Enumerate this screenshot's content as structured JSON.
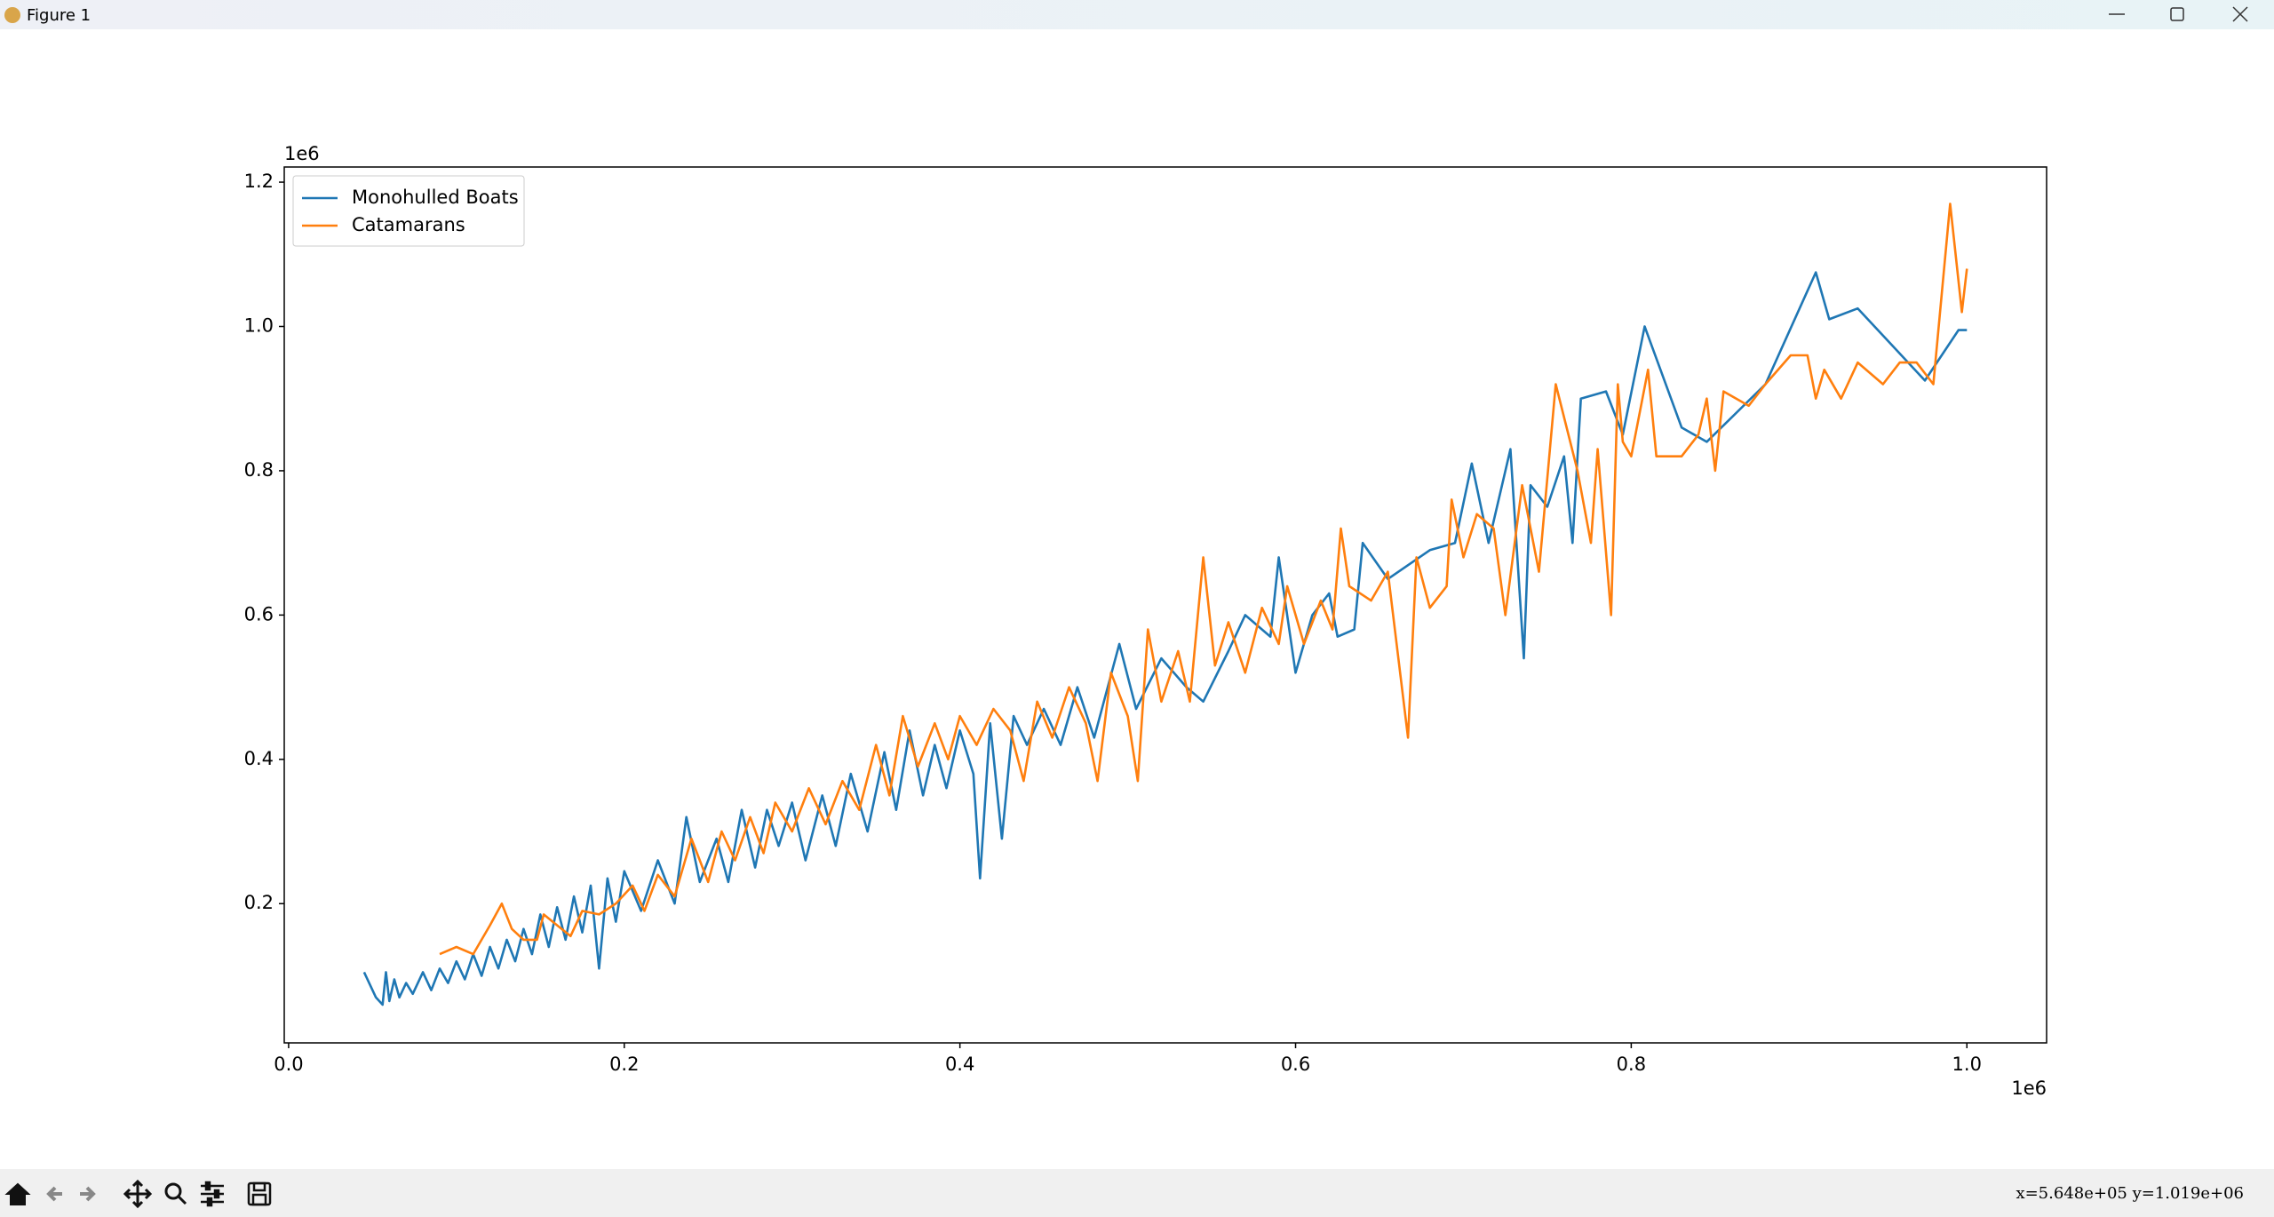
{
  "window_title": "Figure 1",
  "status_text": "x=5.648e+05 y=1.019e+06",
  "chart_data": {
    "type": "line",
    "x_offset_label": "1e6",
    "y_offset_label": "1e6",
    "xlim": [
      -2600,
      1047500
    ],
    "ylim": [
      7000,
      1221000
    ],
    "xticks": [
      {
        "value": 0,
        "label": "0.0"
      },
      {
        "value": 200000,
        "label": "0.2"
      },
      {
        "value": 400000,
        "label": "0.4"
      },
      {
        "value": 600000,
        "label": "0.6"
      },
      {
        "value": 800000,
        "label": "0.8"
      },
      {
        "value": 1000000,
        "label": "1.0"
      }
    ],
    "yticks": [
      {
        "value": 200000,
        "label": "0.2"
      },
      {
        "value": 400000,
        "label": "0.4"
      },
      {
        "value": 600000,
        "label": "0.6"
      },
      {
        "value": 800000,
        "label": "0.8"
      },
      {
        "value": 1000000,
        "label": "1.0"
      },
      {
        "value": 1200000,
        "label": "1.2"
      }
    ],
    "legend": "upper left",
    "grid": false,
    "series": [
      {
        "name": "Monohulled Boats",
        "color": "#1f77b4",
        "x": [
          45000,
          52000,
          56000,
          58000,
          60000,
          63000,
          66000,
          70000,
          74000,
          80000,
          85000,
          90000,
          95000,
          100000,
          105000,
          110000,
          115000,
          120000,
          125000,
          130000,
          135000,
          140000,
          145000,
          150000,
          155000,
          160000,
          165000,
          170000,
          175000,
          180000,
          185000,
          190000,
          195000,
          200000,
          210000,
          220000,
          230000,
          237000,
          245000,
          255000,
          262000,
          270000,
          278000,
          285000,
          292000,
          300000,
          308000,
          318000,
          326000,
          335000,
          345000,
          355000,
          362000,
          370000,
          378000,
          385000,
          392000,
          400000,
          408000,
          412000,
          418000,
          425000,
          432000,
          440000,
          450000,
          460000,
          470000,
          480000,
          495000,
          505000,
          520000,
          535000,
          545000,
          560000,
          570000,
          585000,
          590000,
          600000,
          610000,
          620000,
          625000,
          635000,
          640000,
          655000,
          680000,
          695000,
          705000,
          715000,
          728000,
          736000,
          740000,
          750000,
          760000,
          765000,
          770000,
          785000,
          795000,
          808000,
          830000,
          845000,
          880000,
          910000,
          918000,
          935000,
          975000,
          995000,
          1000000
        ],
        "values": [
          105000,
          70000,
          60000,
          105000,
          65000,
          95000,
          70000,
          90000,
          75000,
          105000,
          80000,
          110000,
          90000,
          120000,
          95000,
          130000,
          100000,
          140000,
          110000,
          150000,
          120000,
          165000,
          130000,
          185000,
          140000,
          195000,
          150000,
          210000,
          160000,
          225000,
          110000,
          235000,
          175000,
          245000,
          190000,
          260000,
          200000,
          320000,
          230000,
          290000,
          230000,
          330000,
          250000,
          330000,
          280000,
          340000,
          260000,
          350000,
          280000,
          380000,
          300000,
          410000,
          330000,
          440000,
          350000,
          420000,
          360000,
          440000,
          380000,
          235000,
          450000,
          290000,
          460000,
          420000,
          470000,
          420000,
          500000,
          430000,
          560000,
          470000,
          540000,
          500000,
          480000,
          550000,
          600000,
          570000,
          680000,
          520000,
          600000,
          630000,
          570000,
          580000,
          700000,
          650000,
          690000,
          700000,
          810000,
          700000,
          830000,
          540000,
          780000,
          750000,
          820000,
          700000,
          900000,
          910000,
          850000,
          1000000,
          860000,
          840000,
          920000,
          1075000,
          1010000,
          1025000,
          925000,
          995000,
          995000
        ]
      },
      {
        "name": "Catamarans",
        "color": "#ff7f0e",
        "x": [
          90000,
          100000,
          110000,
          120000,
          127000,
          133000,
          140000,
          148000,
          152000,
          160000,
          168000,
          175000,
          185000,
          195000,
          205000,
          212000,
          220000,
          230000,
          240000,
          250000,
          258000,
          266000,
          275000,
          283000,
          290000,
          300000,
          310000,
          320000,
          330000,
          340000,
          350000,
          358000,
          366000,
          375000,
          385000,
          393000,
          400000,
          410000,
          420000,
          430000,
          438000,
          446000,
          455000,
          465000,
          475000,
          482000,
          490000,
          500000,
          506000,
          512000,
          520000,
          530000,
          537000,
          545000,
          552000,
          560000,
          570000,
          580000,
          590000,
          595000,
          605000,
          615000,
          622000,
          627000,
          632000,
          645000,
          655000,
          667000,
          672000,
          680000,
          690000,
          693000,
          700000,
          708000,
          718000,
          725000,
          735000,
          745000,
          755000,
          768000,
          776000,
          780000,
          788000,
          792000,
          795000,
          800000,
          810000,
          815000,
          830000,
          840000,
          845000,
          850000,
          855000,
          870000,
          880000,
          895000,
          905000,
          910000,
          915000,
          925000,
          935000,
          950000,
          960000,
          970000,
          980000,
          990000,
          997000,
          1000000
        ],
        "values": [
          130000,
          140000,
          130000,
          170000,
          200000,
          165000,
          150000,
          150000,
          185000,
          170000,
          155000,
          190000,
          185000,
          200000,
          225000,
          190000,
          240000,
          210000,
          290000,
          230000,
          300000,
          260000,
          320000,
          270000,
          340000,
          300000,
          360000,
          310000,
          370000,
          330000,
          420000,
          350000,
          460000,
          390000,
          450000,
          400000,
          460000,
          420000,
          470000,
          440000,
          370000,
          480000,
          430000,
          500000,
          450000,
          370000,
          520000,
          460000,
          370000,
          580000,
          480000,
          550000,
          480000,
          680000,
          530000,
          590000,
          520000,
          610000,
          560000,
          640000,
          560000,
          620000,
          580000,
          720000,
          640000,
          620000,
          660000,
          430000,
          680000,
          610000,
          640000,
          760000,
          680000,
          740000,
          720000,
          600000,
          780000,
          660000,
          920000,
          800000,
          700000,
          830000,
          600000,
          920000,
          840000,
          820000,
          940000,
          820000,
          820000,
          850000,
          900000,
          800000,
          910000,
          890000,
          920000,
          960000,
          960000,
          900000,
          940000,
          900000,
          950000,
          920000,
          950000,
          950000,
          920000,
          1170000,
          1020000,
          1080000
        ]
      }
    ]
  }
}
